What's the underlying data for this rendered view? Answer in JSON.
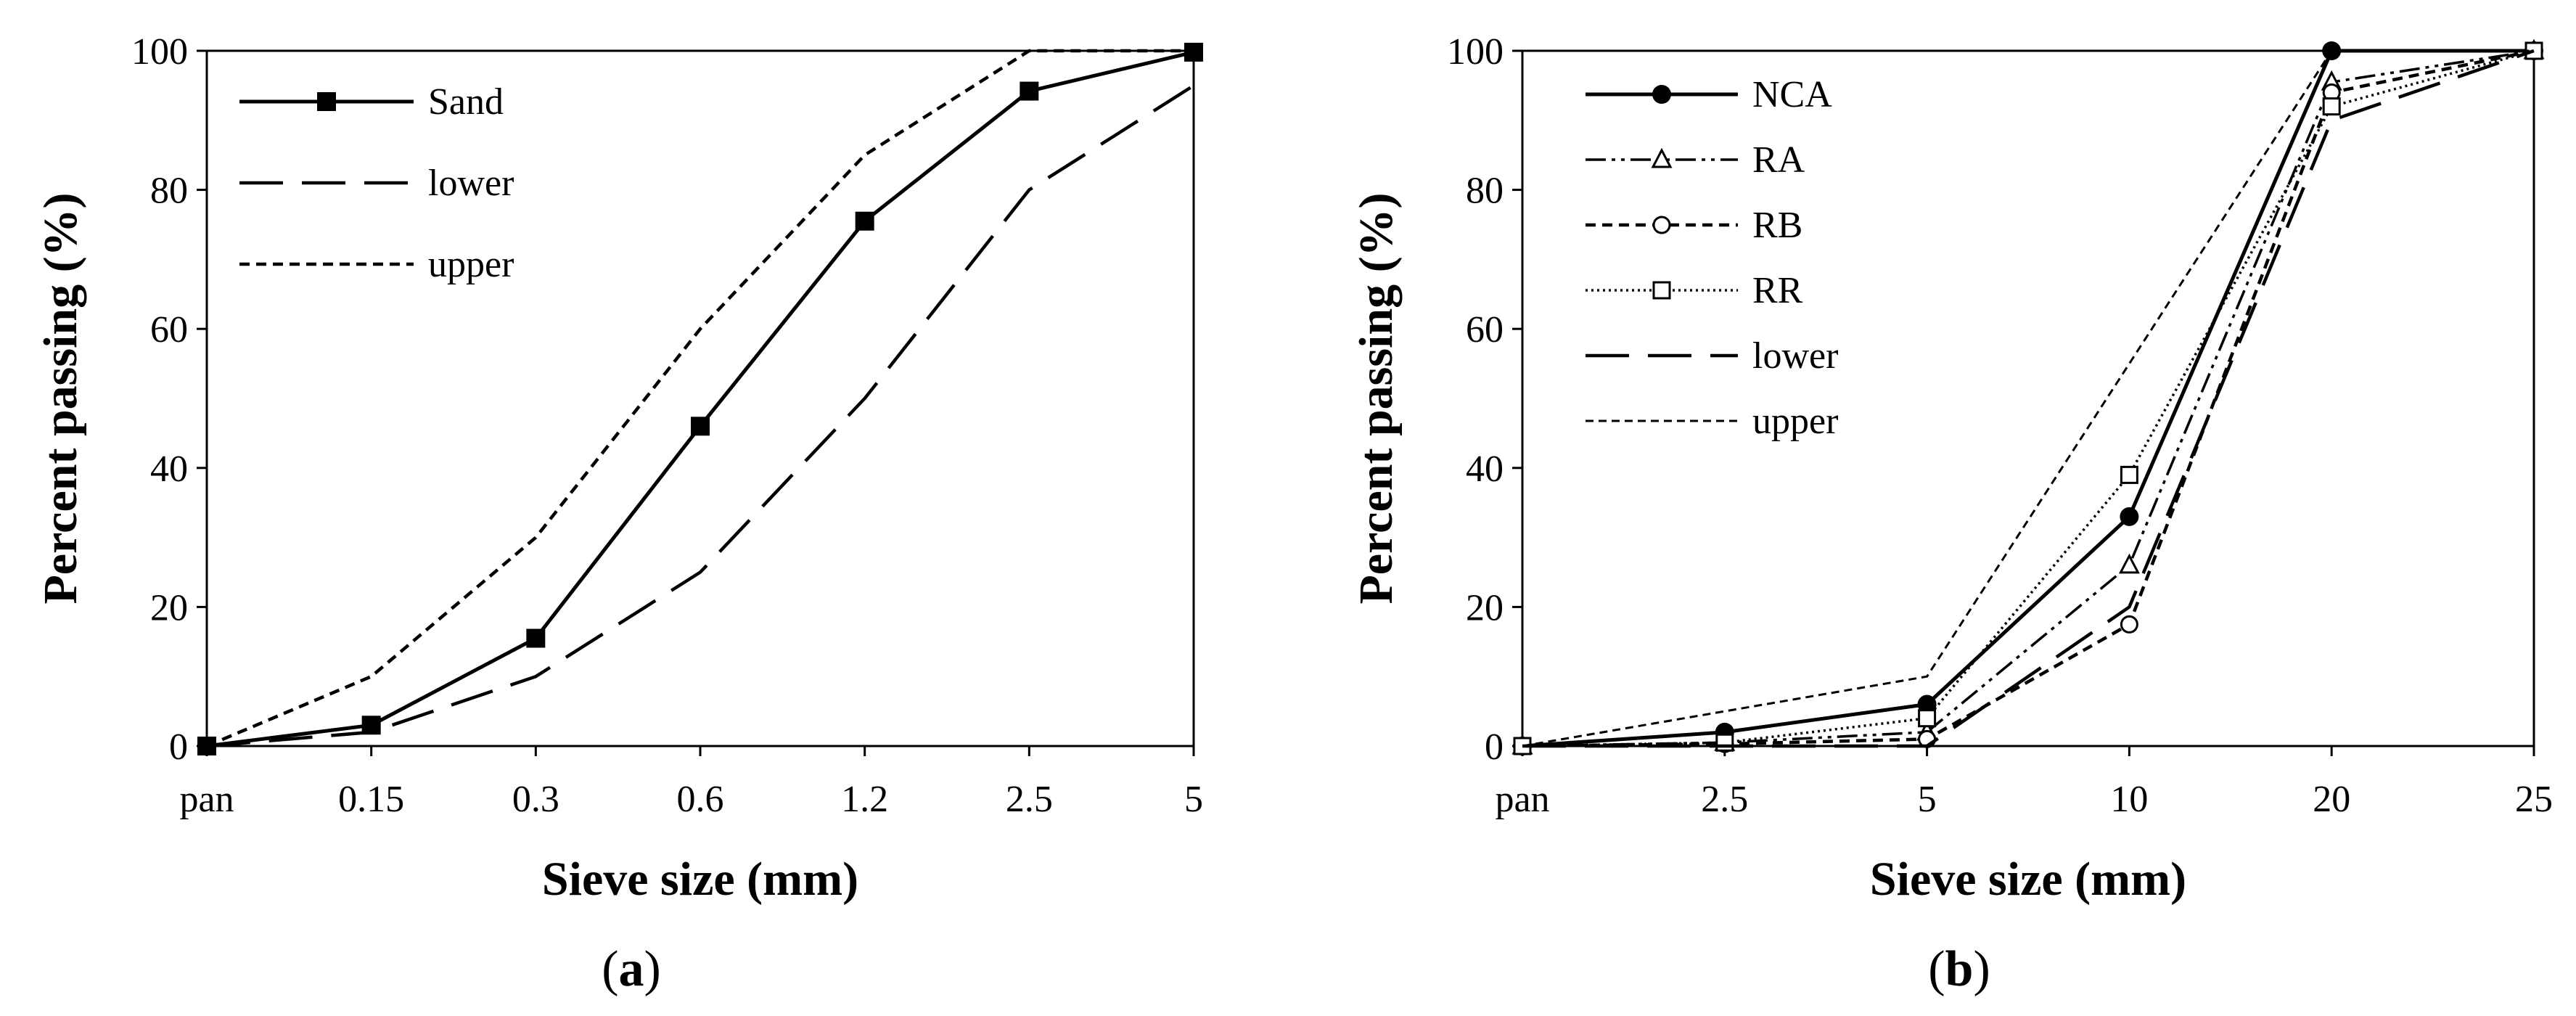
{
  "chart_data": [
    {
      "panel": "a",
      "type": "line",
      "panel_label_open": "(",
      "panel_label_letter": "a",
      "panel_label_close": ")",
      "xlabel": "Sieve size (mm)",
      "ylabel": "Percent passing (%)",
      "categories": [
        "pan",
        "0.15",
        "0.3",
        "0.6",
        "1.2",
        "2.5",
        "5"
      ],
      "ylim": [
        0,
        100
      ],
      "yticks": [
        "0",
        "20",
        "40",
        "60",
        "80",
        "100"
      ],
      "legend_position": "top-left",
      "series": [
        {
          "name": "Sand",
          "values": [
            0,
            3,
            15.5,
            46,
            75.5,
            94.2,
            99.8
          ],
          "style": "solid",
          "marker": "filled-square"
        },
        {
          "name": "lower",
          "values": [
            0,
            2,
            10,
            25,
            50,
            80,
            95
          ],
          "style": "long-dash",
          "marker": "none"
        },
        {
          "name": "upper",
          "values": [
            0,
            10,
            30,
            60,
            85,
            100,
            100
          ],
          "style": "short-dash",
          "marker": "none"
        }
      ]
    },
    {
      "panel": "b",
      "type": "line",
      "panel_label_open": "(",
      "panel_label_letter": "b",
      "panel_label_close": ")",
      "xlabel": "Sieve size (mm)",
      "ylabel": "Percent passing (%)",
      "categories": [
        "pan",
        "2.5",
        "5",
        "10",
        "20",
        "25"
      ],
      "ylim": [
        0,
        100
      ],
      "yticks": [
        "0",
        "20",
        "40",
        "60",
        "80",
        "100"
      ],
      "legend_position": "top-left",
      "series": [
        {
          "name": "NCA",
          "values": [
            0,
            2,
            6,
            33,
            100,
            100
          ],
          "style": "solid",
          "marker": "filled-circle"
        },
        {
          "name": "RA",
          "values": [
            0,
            0.5,
            2,
            26,
            95.5,
            100
          ],
          "style": "dash-dot-dot",
          "marker": "open-triangle"
        },
        {
          "name": "RB",
          "values": [
            0,
            0.3,
            1,
            17.5,
            94,
            100
          ],
          "style": "short-dash",
          "marker": "open-circle"
        },
        {
          "name": "RR",
          "values": [
            0,
            0.5,
            4,
            39,
            92,
            100
          ],
          "style": "dotted",
          "marker": "open-square"
        },
        {
          "name": "lower",
          "values": [
            0,
            0,
            0,
            20,
            90,
            100
          ],
          "style": "long-dash",
          "marker": "none"
        },
        {
          "name": "upper",
          "values": [
            0,
            5,
            10,
            55,
            100,
            100
          ],
          "style": "short-dash-thin",
          "marker": "none"
        }
      ]
    }
  ]
}
